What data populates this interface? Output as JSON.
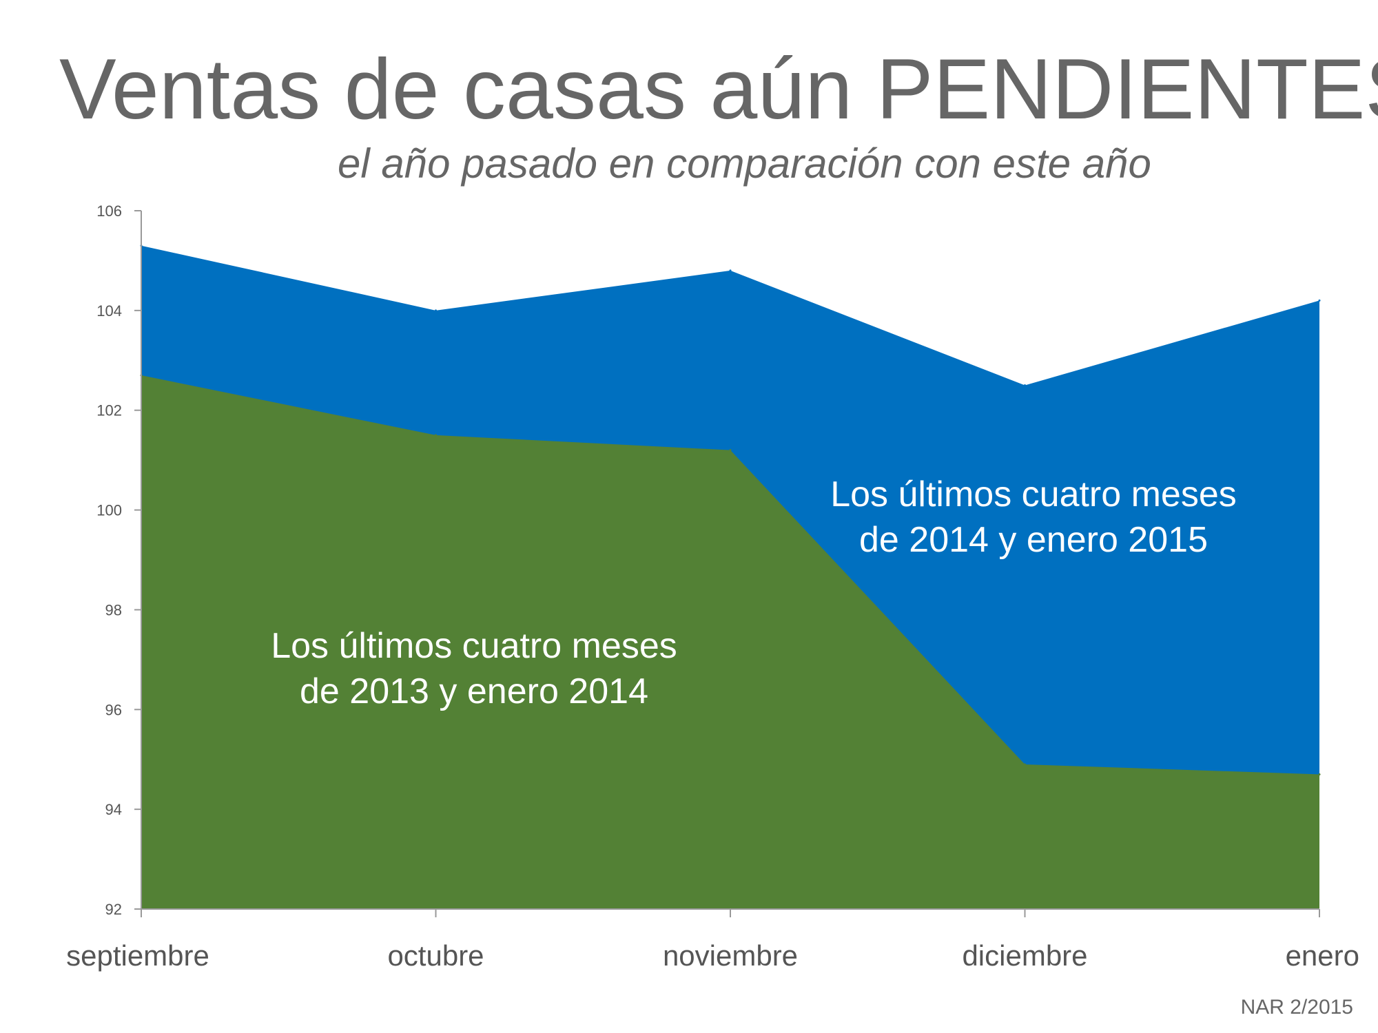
{
  "title": "Ventas de casas aún PENDIENTES",
  "subtitle": "el año pasado en comparación con este año",
  "source": "NAR 2/2015",
  "colors": {
    "blue_series": "#0070c0",
    "green_series": "#538135",
    "text": "#666666",
    "axis": "#999999"
  },
  "chart_data": {
    "type": "area",
    "categories": [
      "septiembre",
      "octubre",
      "noviembre",
      "diciembre",
      "enero"
    ],
    "ylim": [
      92,
      106
    ],
    "yticks": [
      "92",
      "94",
      "96",
      "98",
      "100",
      "102",
      "104",
      "106"
    ],
    "series": [
      {
        "name": "Los últimos cuatro meses de 2014 y enero 2015",
        "name_lines": [
          "Los últimos cuatro meses",
          "de 2014 y enero 2015"
        ],
        "values": [
          105.3,
          104.0,
          104.8,
          102.5,
          104.2
        ],
        "color": "#0070c0"
      },
      {
        "name": "Los últimos cuatro meses de 2013 y enero 2014",
        "name_lines": [
          "Los últimos cuatro meses",
          "de 2013 y enero 2014"
        ],
        "values": [
          102.7,
          101.5,
          101.2,
          94.9,
          94.7
        ],
        "color": "#538135"
      }
    ],
    "grid": false,
    "legend": "labels-inside-areas"
  }
}
